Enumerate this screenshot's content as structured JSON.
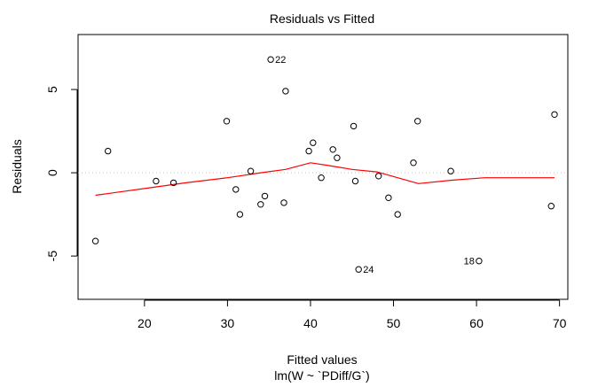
{
  "chart_data": {
    "type": "scatter",
    "title": "Residuals vs Fitted",
    "xlabel": "Fitted values",
    "subtitle": "lm(W ~ `PDiff/G`)",
    "ylabel": "Residuals",
    "xlim": [
      12,
      71
    ],
    "ylim": [
      -7.6,
      8.3
    ],
    "xticks": [
      20,
      30,
      40,
      50,
      60,
      70
    ],
    "yticks": [
      -5,
      0,
      5
    ],
    "points": [
      {
        "x": 14.1,
        "y": -4.1
      },
      {
        "x": 15.6,
        "y": 1.3
      },
      {
        "x": 21.4,
        "y": -0.5
      },
      {
        "x": 23.5,
        "y": -0.6
      },
      {
        "x": 29.9,
        "y": 3.1
      },
      {
        "x": 31.0,
        "y": -1.0
      },
      {
        "x": 31.5,
        "y": -2.5
      },
      {
        "x": 32.8,
        "y": 0.1
      },
      {
        "x": 34.0,
        "y": -1.9
      },
      {
        "x": 34.5,
        "y": -1.4
      },
      {
        "x": 35.2,
        "y": 6.8,
        "label": "22"
      },
      {
        "x": 36.8,
        "y": -1.8
      },
      {
        "x": 37.0,
        "y": 4.9
      },
      {
        "x": 39.8,
        "y": 1.3
      },
      {
        "x": 40.3,
        "y": 1.8
      },
      {
        "x": 41.3,
        "y": -0.3
      },
      {
        "x": 42.7,
        "y": 1.4
      },
      {
        "x": 43.2,
        "y": 0.9
      },
      {
        "x": 45.2,
        "y": 2.8
      },
      {
        "x": 45.4,
        "y": -0.5
      },
      {
        "x": 45.8,
        "y": -5.8,
        "label": "24"
      },
      {
        "x": 48.2,
        "y": -0.2
      },
      {
        "x": 49.4,
        "y": -1.5
      },
      {
        "x": 50.5,
        "y": -2.5
      },
      {
        "x": 52.4,
        "y": 0.6
      },
      {
        "x": 52.9,
        "y": 3.1
      },
      {
        "x": 56.9,
        "y": 0.1
      },
      {
        "x": 60.3,
        "y": -5.3,
        "label": "18"
      },
      {
        "x": 69.0,
        "y": -2.0
      },
      {
        "x": 69.4,
        "y": 3.5
      }
    ],
    "smoother": [
      [
        14.1,
        -1.35
      ],
      [
        20,
        -0.95
      ],
      [
        25,
        -0.6
      ],
      [
        30,
        -0.3
      ],
      [
        34,
        0.0
      ],
      [
        37,
        0.2
      ],
      [
        40,
        0.6
      ],
      [
        42,
        0.45
      ],
      [
        45,
        0.2
      ],
      [
        48,
        0.05
      ],
      [
        50.5,
        -0.3
      ],
      [
        53,
        -0.65
      ],
      [
        57,
        -0.45
      ],
      [
        61,
        -0.3
      ],
      [
        65,
        -0.3
      ],
      [
        69.4,
        -0.3
      ]
    ],
    "colors": {
      "points": "#000000",
      "smoother": "#ff0000",
      "zero_line": "#bebebe"
    }
  }
}
